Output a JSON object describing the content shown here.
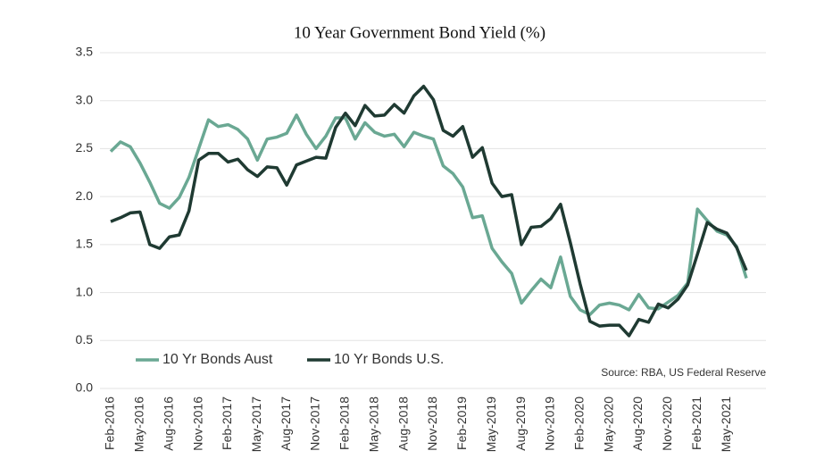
{
  "chart_data": {
    "type": "line",
    "title": "10 Year Government Bond Yield (%)",
    "source": "Source: RBA, US Federal Reserve",
    "categories": [
      "Feb-2016",
      null,
      null,
      "May-2016",
      null,
      null,
      "Aug-2016",
      null,
      null,
      "Nov-2016",
      null,
      null,
      "Feb-2017",
      null,
      null,
      "May-2017",
      null,
      null,
      "Aug-2017",
      null,
      null,
      "Nov-2017",
      null,
      null,
      "Feb-2018",
      null,
      null,
      "May-2018",
      null,
      null,
      "Aug-2018",
      null,
      null,
      "Nov-2018",
      null,
      null,
      "Feb-2019",
      null,
      null,
      "May-2019",
      null,
      null,
      "Aug-2019",
      null,
      null,
      "Nov-2019",
      null,
      null,
      "Feb-2020",
      null,
      null,
      "May-2020",
      null,
      null,
      "Aug-2020",
      null,
      null,
      "Nov-2020",
      null,
      null,
      "Feb-2021",
      null,
      null,
      "May-2021",
      null,
      null
    ],
    "series": [
      {
        "name": "10 Yr Bonds Aust",
        "color": "#6aa893",
        "values": [
          2.47,
          2.57,
          2.52,
          2.35,
          2.15,
          1.93,
          1.88,
          1.99,
          2.2,
          2.5,
          2.8,
          2.73,
          2.75,
          2.7,
          2.6,
          2.38,
          2.6,
          2.62,
          2.66,
          2.85,
          2.65,
          2.5,
          2.63,
          2.82,
          2.82,
          2.6,
          2.77,
          2.67,
          2.63,
          2.65,
          2.52,
          2.67,
          2.63,
          2.6,
          2.32,
          2.24,
          2.1,
          1.78,
          1.8,
          1.46,
          1.32,
          1.2,
          0.89,
          1.02,
          1.14,
          1.05,
          1.37,
          0.96,
          0.82,
          0.77,
          0.87,
          0.89,
          0.87,
          0.82,
          0.98,
          0.84,
          0.83,
          0.9,
          0.97,
          1.1,
          1.87,
          1.75,
          1.64,
          1.6,
          1.48,
          1.15
        ]
      },
      {
        "name": "10 Yr Bonds U.S.",
        "color": "#1f3a32",
        "values": [
          1.74,
          1.78,
          1.83,
          1.84,
          1.5,
          1.46,
          1.58,
          1.6,
          1.85,
          2.38,
          2.45,
          2.45,
          2.36,
          2.39,
          2.28,
          2.21,
          2.31,
          2.3,
          2.12,
          2.33,
          2.37,
          2.41,
          2.4,
          2.72,
          2.87,
          2.74,
          2.95,
          2.84,
          2.85,
          2.96,
          2.87,
          3.05,
          3.15,
          3.01,
          2.69,
          2.63,
          2.73,
          2.41,
          2.51,
          2.14,
          2.0,
          2.02,
          1.5,
          1.68,
          1.69,
          1.77,
          1.92,
          1.52,
          1.09,
          0.7,
          0.65,
          0.66,
          0.66,
          0.55,
          0.72,
          0.69,
          0.88,
          0.84,
          0.93,
          1.08,
          1.4,
          1.73,
          1.66,
          1.62,
          1.47,
          1.23
        ]
      }
    ],
    "ylim": [
      0,
      3.5
    ],
    "yticks": [
      {
        "value": 0,
        "label": "0.0"
      },
      {
        "value": 0.5,
        "label": "0.5"
      },
      {
        "value": 1,
        "label": "1.0"
      },
      {
        "value": 1.5,
        "label": "1.5"
      },
      {
        "value": 2,
        "label": "2.0"
      },
      {
        "value": 2.5,
        "label": "2.5"
      },
      {
        "value": 3,
        "label": "3.0"
      },
      {
        "value": 3.5,
        "label": "3.5"
      }
    ],
    "grid": true
  }
}
